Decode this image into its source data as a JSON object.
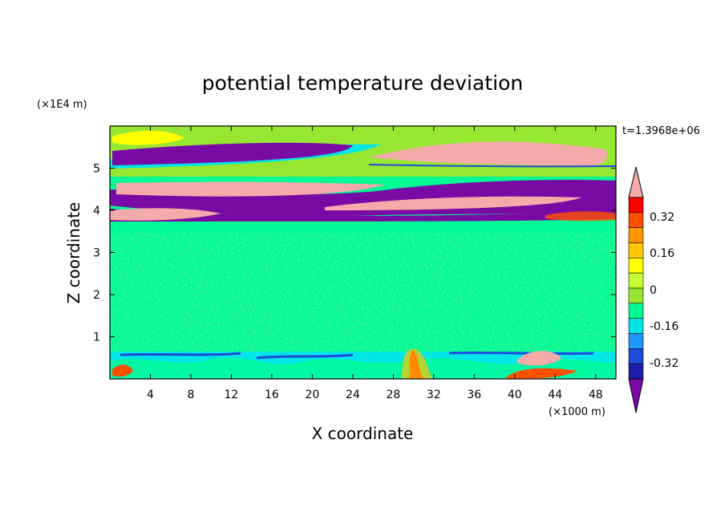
{
  "chart_data": {
    "type": "heatmap",
    "title": "potential temperature deviation",
    "xlabel": "X coordinate",
    "ylabel": "Z coordinate",
    "x_unit": "(×1000 m)",
    "y_unit": "(×1E4 m)",
    "time_label": "t=1.3968e+06",
    "xlim": [
      0,
      50
    ],
    "ylim": [
      0,
      6
    ],
    "x_ticks": [
      "4",
      "8",
      "12",
      "16",
      "20",
      "24",
      "28",
      "32",
      "36",
      "40",
      "44",
      "48"
    ],
    "y_ticks": [
      "1",
      "2",
      "3",
      "4",
      "5"
    ],
    "colorbar": {
      "labels": [
        "0.32",
        "0.16",
        "0",
        "-0.16",
        "-0.32"
      ],
      "colors": [
        "#7a0aa5",
        "#1e1eaa",
        "#1e4bd8",
        "#1e96ff",
        "#00e6e6",
        "#00fa96",
        "#96e632",
        "#c8ff32",
        "#ffff00",
        "#ffc800",
        "#ff9600",
        "#ff5000",
        "#ff0000",
        "#f5aaaa"
      ]
    }
  }
}
